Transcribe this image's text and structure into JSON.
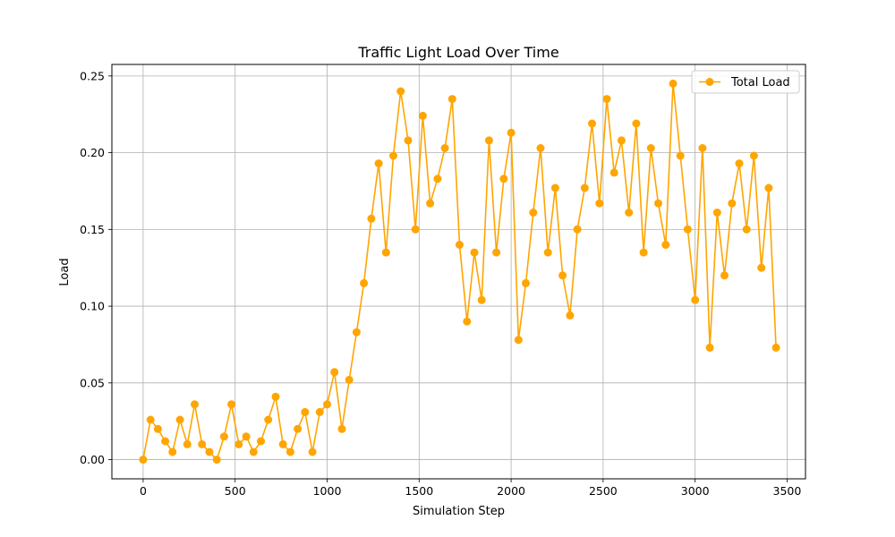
{
  "chart_data": {
    "type": "line",
    "title": "Traffic Light Load Over Time",
    "xlabel": "Simulation Step",
    "ylabel": "Load",
    "xlim": [
      -170,
      3600
    ],
    "ylim": [
      -0.0125,
      0.2575
    ],
    "x_ticks": [
      0,
      500,
      1000,
      1500,
      2000,
      2500,
      3000,
      3500
    ],
    "x_tick_labels": [
      "0",
      "500",
      "1000",
      "1500",
      "2000",
      "2500",
      "3000",
      "3500"
    ],
    "y_ticks": [
      0.0,
      0.05,
      0.1,
      0.15,
      0.2,
      0.25
    ],
    "y_tick_labels": [
      "0.00",
      "0.05",
      "0.10",
      "0.15",
      "0.20",
      "0.25"
    ],
    "grid": true,
    "legend_position": "top-right",
    "series": [
      {
        "name": "Total Load",
        "color": "#ffa500",
        "marker": "circle",
        "x": [
          0,
          40,
          80,
          120,
          160,
          200,
          240,
          280,
          320,
          360,
          400,
          440,
          480,
          520,
          560,
          600,
          640,
          680,
          720,
          760,
          800,
          840,
          880,
          920,
          960,
          1000,
          1040,
          1080,
          1120,
          1160,
          1200,
          1240,
          1280,
          1320,
          1360,
          1400,
          1440,
          1480,
          1520,
          1560,
          1600,
          1640,
          1680,
          1720,
          1760,
          1800,
          1840,
          1880,
          1920,
          1960,
          2000,
          2040,
          2080,
          2120,
          2160,
          2200,
          2240,
          2280,
          2320,
          2360,
          2400,
          2440,
          2480,
          2520,
          2560,
          2600,
          2640,
          2680,
          2720,
          2760,
          2800,
          2840,
          2880,
          2920,
          2960,
          3000,
          3040,
          3080,
          3120,
          3160,
          3200,
          3240,
          3280,
          3320,
          3360,
          3400,
          3440
        ],
        "values": [
          0.0,
          0.026,
          0.02,
          0.012,
          0.005,
          0.026,
          0.01,
          0.036,
          0.01,
          0.005,
          0.0,
          0.015,
          0.036,
          0.01,
          0.015,
          0.005,
          0.012,
          0.026,
          0.041,
          0.01,
          0.005,
          0.02,
          0.031,
          0.005,
          0.031,
          0.036,
          0.057,
          0.02,
          0.052,
          0.083,
          0.115,
          0.157,
          0.193,
          0.135,
          0.198,
          0.24,
          0.208,
          0.15,
          0.224,
          0.167,
          0.183,
          0.203,
          0.235,
          0.14,
          0.09,
          0.135,
          0.104,
          0.208,
          0.135,
          0.183,
          0.213,
          0.078,
          0.115,
          0.161,
          0.203,
          0.135,
          0.177,
          0.12,
          0.094,
          0.15,
          0.177,
          0.219,
          0.167,
          0.235,
          0.187,
          0.208,
          0.161,
          0.219,
          0.135,
          0.203,
          0.167,
          0.14,
          0.245,
          0.198,
          0.15,
          0.104,
          0.203,
          0.073,
          0.161,
          0.12,
          0.167,
          0.193,
          0.15,
          0.198,
          0.125,
          0.177,
          0.073
        ]
      }
    ]
  }
}
